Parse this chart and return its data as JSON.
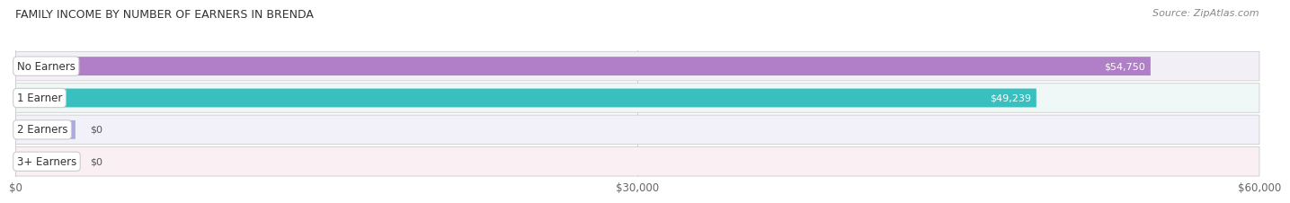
{
  "title": "FAMILY INCOME BY NUMBER OF EARNERS IN BRENDA",
  "source": "Source: ZipAtlas.com",
  "categories": [
    "No Earners",
    "1 Earner",
    "2 Earners",
    "3+ Earners"
  ],
  "values": [
    54750,
    49239,
    0,
    0
  ],
  "bar_colors": [
    "#b07fc7",
    "#3abfbf",
    "#aaaadd",
    "#f599aa"
  ],
  "row_bg_colors": [
    "#f2f0f6",
    "#f0f7f7",
    "#f2f0f8",
    "#faf0f4"
  ],
  "xlim": [
    0,
    60000
  ],
  "xticks": [
    0,
    30000,
    60000
  ],
  "xtick_labels": [
    "$0",
    "$30,000",
    "$60,000"
  ],
  "value_labels": [
    "$54,750",
    "$49,239",
    "$0",
    "$0"
  ],
  "figsize": [
    14.06,
    2.32
  ],
  "dpi": 100
}
